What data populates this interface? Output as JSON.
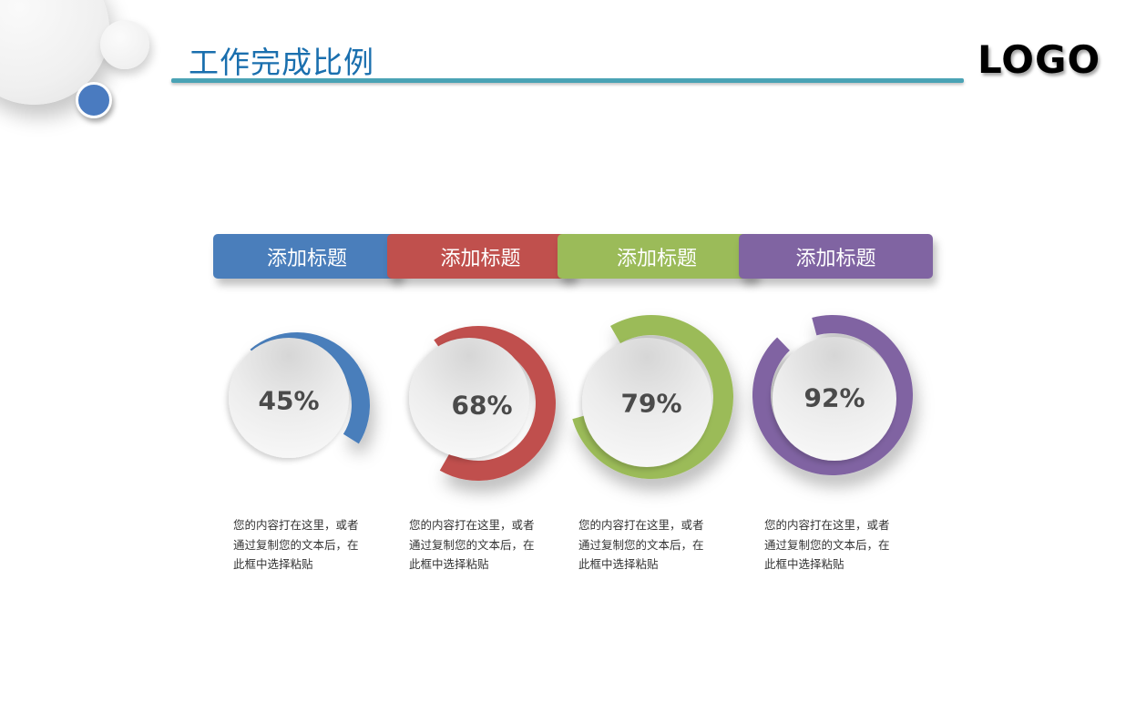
{
  "header": {
    "title": "工作完成比例",
    "logo": "LOGO",
    "accent_line_color": "#4aa3b5",
    "title_color": "#1a6fae"
  },
  "items": [
    {
      "label": "添加标题",
      "value": 45,
      "value_label": "45%",
      "color": "#4a7ebb",
      "description": [
        "您的内容打在这里，或者",
        "通过复制您的文本后，在",
        "此框中选择粘贴"
      ]
    },
    {
      "label": "添加标题",
      "value": 68,
      "value_label": "68%",
      "color": "#c0504d",
      "description": [
        "您的内容打在这里，或者",
        "通过复制您的文本后，在",
        "此框中选择粘贴"
      ]
    },
    {
      "label": "添加标题",
      "value": 79,
      "value_label": "79%",
      "color": "#9bbb59",
      "description": [
        "您的内容打在这里，或者",
        "通过复制您的文本后，在",
        "此框中选择粘贴"
      ]
    },
    {
      "label": "添加标题",
      "value": 92,
      "value_label": "92%",
      "color": "#8064a2",
      "description": [
        "您的内容打在这里，或者",
        "通过复制您的文本后，在",
        "此框中选择粘贴"
      ]
    }
  ],
  "chart_data": {
    "type": "pie",
    "subtype": "progress-ring",
    "title": "工作完成比例",
    "categories": [
      "添加标题",
      "添加标题",
      "添加标题",
      "添加标题"
    ],
    "values": [
      45,
      68,
      79,
      92
    ],
    "unit": "%",
    "colors": [
      "#4a7ebb",
      "#c0504d",
      "#9bbb59",
      "#8064a2"
    ],
    "legend": "none",
    "annotations": [
      "45%",
      "68%",
      "79%",
      "92%"
    ]
  }
}
